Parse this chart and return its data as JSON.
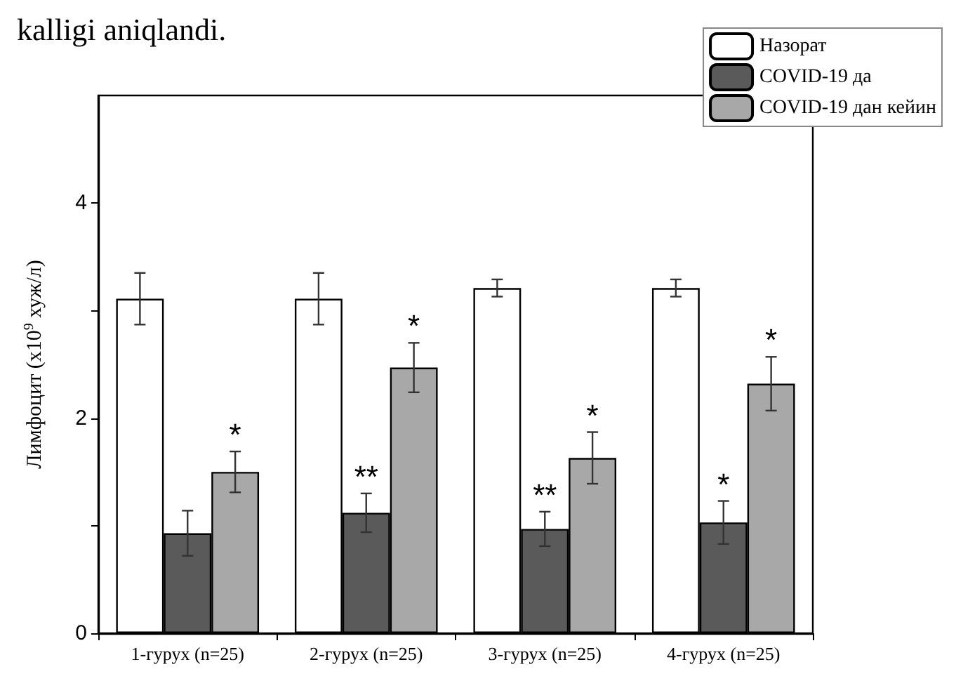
{
  "chart_data": {
    "type": "bar",
    "ylabel": "Лимфоцит (х10$^{9}$ хуж/л)",
    "categories": [
      "1-гурух (n=25)",
      "2-гурух (n=25)",
      "3-гурух (n=25)",
      "4-гурух (n=25)"
    ],
    "series": [
      {
        "name": "Назорат",
        "color": "#ffffff",
        "values": [
          3.11,
          3.11,
          3.21,
          3.21
        ],
        "errors": [
          0.24,
          0.24,
          0.08,
          0.08
        ]
      },
      {
        "name": "COVID-19 да",
        "color": "#5a5a5a",
        "values": [
          0.93,
          1.12,
          0.97,
          1.03
        ],
        "errors": [
          0.21,
          0.18,
          0.16,
          0.2
        ],
        "value_labels": [
          null,
          "**",
          "**",
          "*"
        ]
      },
      {
        "name": "COVID-19 дан кейин",
        "color": "#a8a8a8",
        "values": [
          1.5,
          2.47,
          1.63,
          2.32
        ],
        "errors": [
          0.19,
          0.23,
          0.24,
          0.25
        ],
        "value_labels": [
          "*",
          "*",
          "*",
          "*"
        ]
      }
    ],
    "ylim": [
      0,
      5
    ],
    "yticks": [
      0,
      {
        "value": 1,
        "label": null
      },
      2,
      {
        "value": 3,
        "label": null
      },
      4
    ],
    "legend": "top right",
    "grid": false,
    "annotations": [
      "kalligi aniqlandi."
    ]
  }
}
